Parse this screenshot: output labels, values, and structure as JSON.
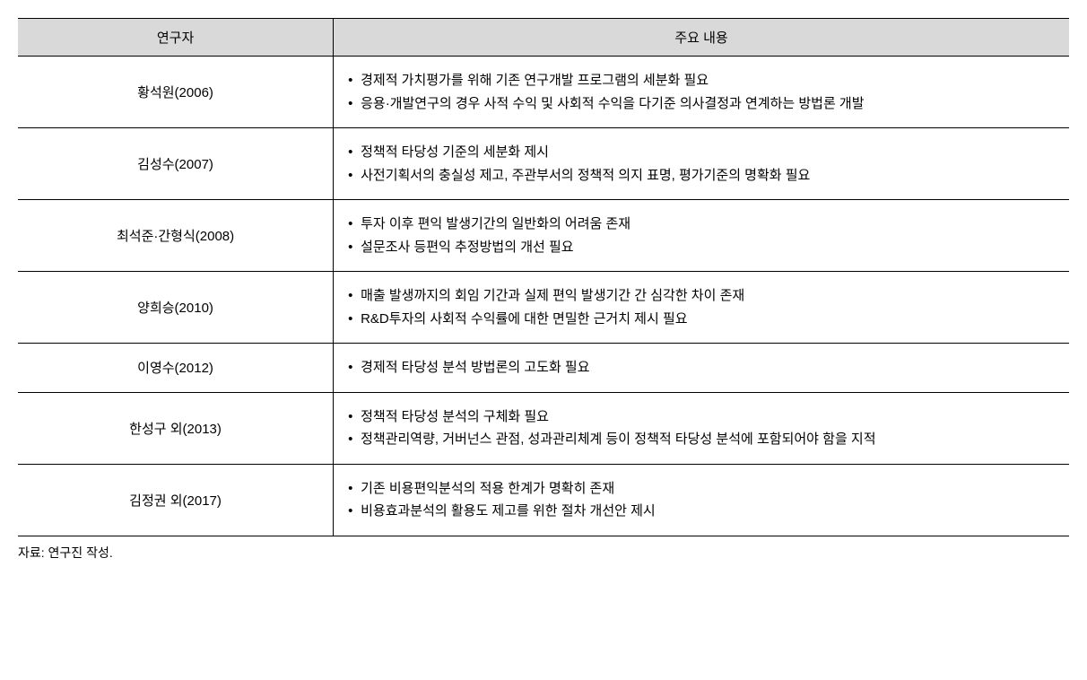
{
  "table": {
    "headers": {
      "author": "연구자",
      "content": "주요 내용"
    },
    "rows": [
      {
        "author": "황석원(2006)",
        "bullets": [
          "경제적 가치평가를 위해 기존 연구개발 프로그램의 세분화 필요",
          "응용·개발연구의 경우 사적 수익 및 사회적 수익을 다기준 의사결정과 연계하는 방법론 개발"
        ]
      },
      {
        "author": "김성수(2007)",
        "bullets": [
          "정책적 타당성 기준의 세분화 제시",
          "사전기획서의 충실성 제고, 주관부서의 정책적 의지 표명, 평가기준의 명확화 필요"
        ]
      },
      {
        "author": "최석준·간형식(2008)",
        "bullets": [
          "투자 이후 편익 발생기간의 일반화의 어려움 존재",
          "설문조사 등편익 추정방법의 개선 필요"
        ]
      },
      {
        "author": "양희승(2010)",
        "bullets": [
          "매출 발생까지의 회임 기간과 실제 편익 발생기간 간 심각한 차이 존재",
          "R&D투자의 사회적 수익률에 대한 면밀한 근거치 제시 필요"
        ]
      },
      {
        "author": "이영수(2012)",
        "bullets": [
          "경제적 타당성 분석 방법론의 고도화 필요"
        ]
      },
      {
        "author": "한성구 외(2013)",
        "bullets": [
          "정책적 타당성 분석의 구체화 필요",
          "정책관리역량, 거버넌스 관점, 성과관리체계 등이 정책적 타당성 분석에 포함되어야 함을 지적"
        ]
      },
      {
        "author": "김정권 외(2017)",
        "bullets": [
          "기존 비용편익분석의 적용 한계가 명확히 존재",
          "비용효과분석의 활용도 제고를 위한 절차 개선안 제시"
        ]
      }
    ]
  },
  "source": "자료: 연구진 작성.",
  "styles": {
    "header_bg": "#d9d9d9",
    "border_color": "#000000",
    "text_color": "#000000",
    "background": "#ffffff",
    "font_size_body": 15,
    "font_size_source": 14,
    "col_author_width_pct": 30,
    "col_content_width_pct": 70
  }
}
